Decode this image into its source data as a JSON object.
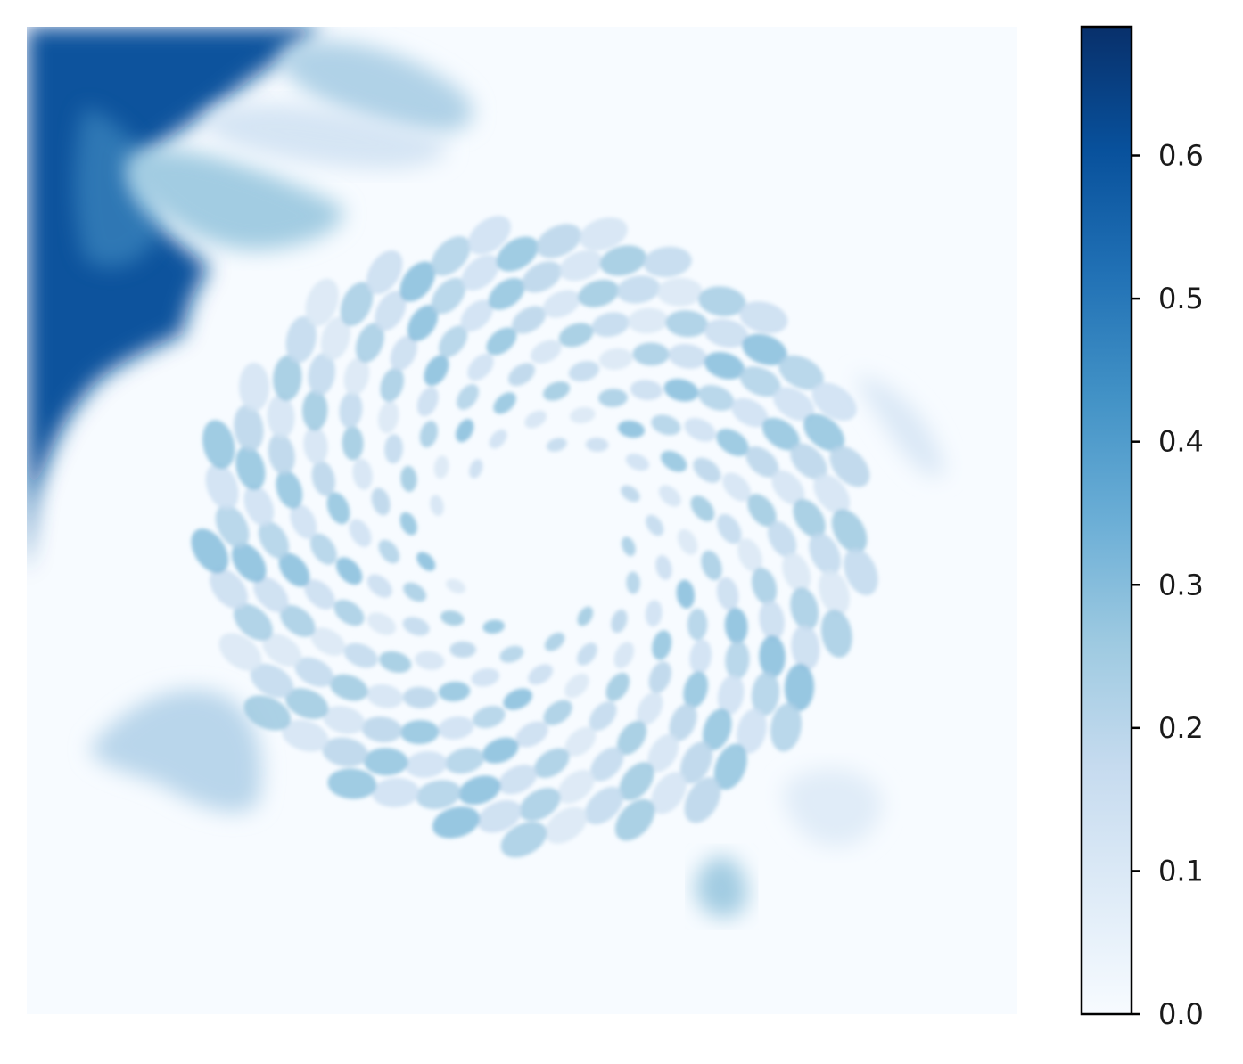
{
  "chart_data": {
    "type": "heatmap",
    "title": "",
    "xlabel": "",
    "ylabel": "",
    "axes_visible": false,
    "colormap": "Blues",
    "colormap_stops": [
      "#f7fbff",
      "#deebf7",
      "#c6dbef",
      "#9ecae1",
      "#6baed6",
      "#4292c6",
      "#2171b5",
      "#08519c",
      "#08306b"
    ],
    "value_range": [
      0.0,
      0.69
    ],
    "colorbar": {
      "position": "right",
      "ticks": [
        0.0,
        0.1,
        0.2,
        0.3,
        0.4,
        0.5,
        0.6
      ],
      "tick_labels": [
        "0.0",
        "0.1",
        "0.2",
        "0.3",
        "0.4",
        "0.5",
        "0.6"
      ]
    },
    "regions": [
      {
        "name": "upper-left dark region",
        "value": 0.6
      },
      {
        "name": "upper-left petal",
        "value": 0.25
      },
      {
        "name": "top petal",
        "value": 0.22
      },
      {
        "name": "lower-left petal",
        "value": 0.2
      },
      {
        "name": "seed pattern spots",
        "value": 0.3
      },
      {
        "name": "bottom petal",
        "value": 0.25
      },
      {
        "name": "background",
        "value": 0.0
      }
    ]
  }
}
